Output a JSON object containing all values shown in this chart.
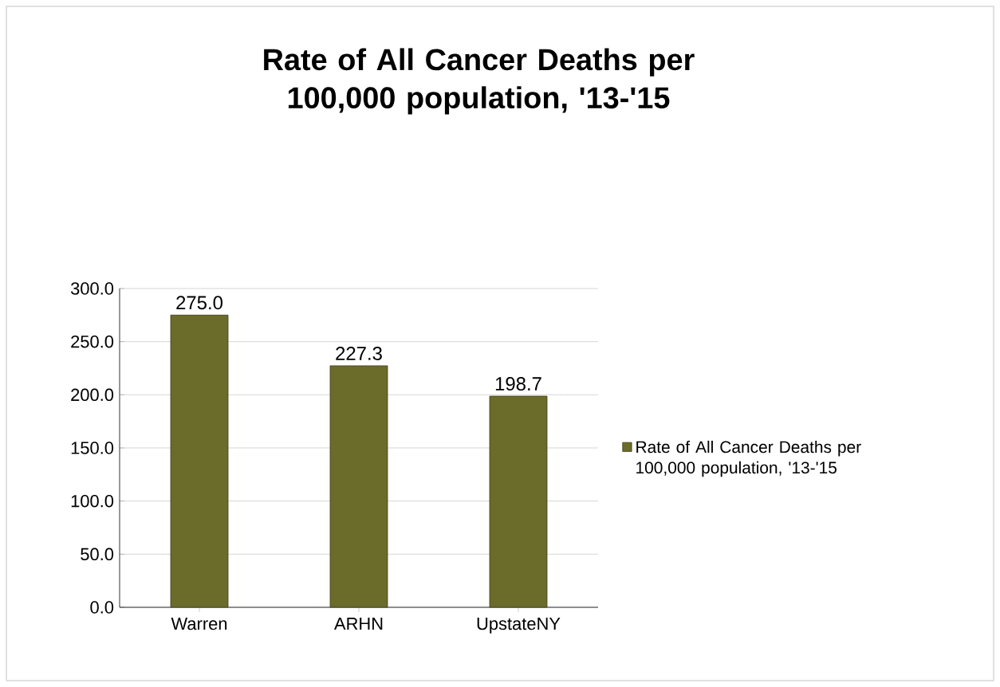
{
  "chart_data": {
    "type": "bar",
    "title": "Rate of All Cancer Deaths per 100,000 population, '13-'15",
    "categories": [
      "Warren",
      "ARHN",
      "UpstateNY"
    ],
    "series": [
      {
        "name": "Rate of All Cancer Deaths per 100,000 population, '13-'15",
        "color": "#6b6b2a",
        "values": [
          275.0,
          227.3,
          198.7
        ],
        "value_labels": [
          "275.0",
          "227.3",
          "198.7"
        ]
      }
    ],
    "ylim": [
      0,
      300
    ],
    "yticks": [
      {
        "value": 0,
        "label": "0.0"
      },
      {
        "value": 50,
        "label": "50.0"
      },
      {
        "value": 100,
        "label": "100.0"
      },
      {
        "value": 150,
        "label": "150.0"
      },
      {
        "value": 200,
        "label": "200.0"
      },
      {
        "value": 250,
        "label": "250.0"
      },
      {
        "value": 300,
        "label": "300.0"
      }
    ],
    "grid": "y",
    "legend": "right"
  }
}
